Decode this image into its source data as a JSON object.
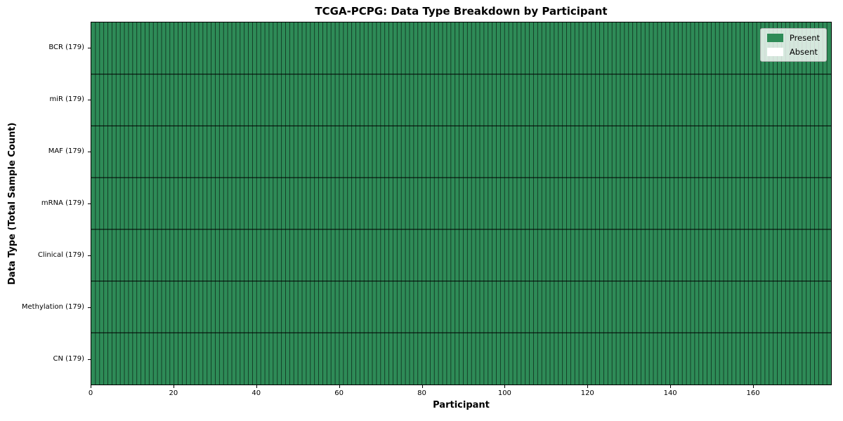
{
  "chart_data": {
    "type": "heatmap",
    "title": "TCGA-PCPG: Data Type Breakdown by Participant",
    "xlabel": "Participant",
    "ylabel": "Data Type (Total Sample Count)",
    "n_participants": 179,
    "xlim": [
      0,
      179
    ],
    "x_ticks": [
      0,
      20,
      40,
      60,
      80,
      100,
      120,
      140,
      160
    ],
    "rows": [
      {
        "name": "BCR",
        "label": "BCR (179)",
        "total": 179,
        "present_count": 179,
        "absent_count": 0
      },
      {
        "name": "miR",
        "label": "miR (179)",
        "total": 179,
        "present_count": 179,
        "absent_count": 0
      },
      {
        "name": "MAF",
        "label": "MAF (179)",
        "total": 179,
        "present_count": 179,
        "absent_count": 0
      },
      {
        "name": "mRNA",
        "label": "mRNA (179)",
        "total": 179,
        "present_count": 179,
        "absent_count": 0
      },
      {
        "name": "Clinical",
        "label": "Clinical (179)",
        "total": 179,
        "present_count": 179,
        "absent_count": 0
      },
      {
        "name": "Methylation",
        "label": "Methylation (179)",
        "total": 179,
        "present_count": 179,
        "absent_count": 0
      },
      {
        "name": "CN",
        "label": "CN (179)",
        "total": 179,
        "present_count": 179,
        "absent_count": 0
      }
    ],
    "legend": [
      {
        "label": "Present",
        "color": "#2e8b57"
      },
      {
        "label": "Absent",
        "color": "#ffffff"
      }
    ],
    "colors": {
      "present": "#2e8b57",
      "absent": "#ffffff",
      "cell_edge": "rgba(0,0,0,0.6)",
      "row_divider": "#000000",
      "spine": "#000000"
    },
    "legend_position": "upper right",
    "grid": "cell-borders"
  }
}
